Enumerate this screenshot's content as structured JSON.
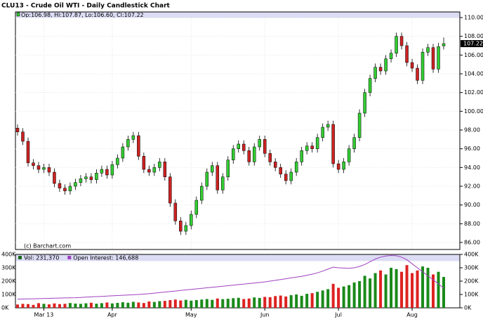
{
  "chart_data": {
    "type": "candlestick",
    "title": "CLU13 - Crude Oil WTI - Daily Candlestick Chart",
    "header": "Op:106.98, Hi:107.87, Lo:106.60, Cl:107.22",
    "source": "(c) Barchart.com",
    "up_color": "#33cc33",
    "down_color": "#cc2222",
    "open": [
      98.2,
      97.8,
      96.8,
      94.5,
      94.2,
      93.8,
      94.0,
      93.5,
      92.3,
      91.8,
      91.5,
      92.0,
      92.4,
      92.8,
      93.0,
      92.7,
      93.4,
      93.8,
      93.2,
      94.3,
      95.0,
      96.2,
      97.0,
      97.4,
      95.2,
      93.8,
      93.5,
      94.0,
      94.6,
      93.0,
      90.2,
      88.3,
      87.2,
      87.8,
      89.0,
      90.5,
      92.0,
      93.5,
      94.2,
      91.6,
      93.0,
      94.8,
      96.0,
      96.5,
      95.8,
      94.6,
      96.2,
      97.0,
      95.5,
      94.6,
      94.0,
      93.3,
      92.6,
      93.5,
      94.6,
      95.8,
      96.3,
      96.0,
      97.2,
      98.3,
      98.6,
      94.4,
      93.8,
      94.6,
      96.0,
      97.2,
      99.8,
      102.0,
      103.5,
      104.7,
      104.3,
      105.6,
      106.2,
      108.0,
      107.0,
      105.2,
      104.6,
      103.3,
      106.3,
      106.8,
      104.5,
      106.98
    ],
    "high": [
      98.6,
      98.2,
      97.2,
      94.9,
      94.6,
      94.4,
      94.4,
      93.9,
      92.7,
      92.2,
      92.4,
      92.8,
      93.2,
      93.4,
      93.4,
      93.8,
      94.2,
      94.2,
      94.7,
      95.4,
      96.6,
      97.4,
      97.8,
      97.8,
      95.6,
      94.2,
      94.4,
      95.0,
      95.0,
      93.4,
      90.6,
      88.7,
      88.2,
      89.4,
      90.9,
      92.4,
      93.9,
      94.6,
      94.6,
      93.4,
      95.2,
      96.4,
      96.9,
      96.9,
      96.2,
      96.6,
      97.4,
      97.4,
      95.9,
      95.0,
      94.4,
      93.7,
      93.9,
      95.0,
      96.2,
      96.7,
      96.7,
      97.6,
      98.7,
      99.0,
      99.0,
      94.8,
      95.0,
      96.4,
      97.6,
      100.2,
      102.4,
      103.9,
      105.1,
      105.1,
      106.0,
      106.6,
      108.4,
      108.4,
      107.4,
      105.6,
      105.0,
      106.7,
      107.2,
      107.2,
      107.3,
      107.87
    ],
    "low": [
      97.4,
      96.4,
      94.1,
      93.8,
      93.4,
      93.4,
      93.1,
      91.9,
      91.4,
      91.1,
      91.1,
      91.6,
      92.0,
      92.4,
      92.3,
      92.3,
      93.0,
      92.8,
      92.8,
      93.9,
      94.6,
      95.8,
      96.6,
      94.8,
      93.4,
      93.1,
      93.1,
      93.6,
      92.6,
      89.8,
      87.9,
      86.8,
      86.8,
      87.4,
      88.6,
      90.1,
      91.6,
      93.1,
      91.2,
      91.2,
      92.6,
      94.4,
      95.6,
      95.4,
      94.2,
      94.2,
      95.8,
      95.1,
      94.2,
      93.6,
      92.9,
      92.2,
      92.2,
      93.1,
      94.2,
      95.4,
      95.6,
      95.6,
      96.8,
      97.9,
      94.0,
      93.4,
      93.4,
      94.2,
      95.6,
      96.8,
      99.4,
      101.6,
      103.1,
      103.9,
      103.9,
      105.2,
      105.8,
      106.6,
      104.8,
      104.2,
      102.9,
      102.9,
      105.9,
      104.1,
      104.1,
      106.6
    ],
    "close": [
      97.8,
      96.8,
      94.5,
      94.2,
      93.8,
      94.0,
      93.5,
      92.3,
      91.8,
      91.5,
      92.0,
      92.4,
      92.8,
      93.0,
      92.7,
      93.4,
      93.8,
      93.2,
      94.3,
      95.0,
      96.2,
      97.0,
      97.4,
      95.2,
      93.8,
      93.5,
      94.0,
      94.6,
      93.0,
      90.2,
      88.3,
      87.2,
      87.8,
      89.0,
      90.5,
      92.0,
      93.5,
      94.2,
      91.6,
      93.0,
      94.8,
      96.0,
      96.5,
      95.8,
      94.6,
      96.2,
      97.0,
      95.5,
      94.6,
      94.0,
      93.3,
      92.6,
      93.5,
      94.6,
      95.8,
      96.3,
      96.0,
      97.2,
      98.3,
      98.6,
      94.4,
      93.8,
      94.6,
      96.0,
      97.2,
      99.8,
      102.0,
      103.5,
      104.7,
      104.3,
      105.6,
      106.2,
      108.0,
      107.0,
      105.2,
      104.6,
      103.3,
      106.3,
      106.8,
      104.5,
      106.9,
      107.22
    ],
    "last_label": "107.22",
    "ylim": [
      86,
      110
    ],
    "yticks": [
      {
        "value": 86,
        "label": "86.00"
      },
      {
        "value": 88,
        "label": "88.00"
      },
      {
        "value": 90,
        "label": "90.00"
      },
      {
        "value": 92,
        "label": "92.00"
      },
      {
        "value": 94,
        "label": "94.00"
      },
      {
        "value": 96,
        "label": "96.00"
      },
      {
        "value": 98,
        "label": "98.00"
      },
      {
        "value": 100,
        "label": "100.00"
      },
      {
        "value": 102,
        "label": "102.00"
      },
      {
        "value": 104,
        "label": "104.00"
      },
      {
        "value": 106,
        "label": "106.00"
      },
      {
        "value": 108,
        "label": "108.00"
      },
      {
        "value": 110,
        "label": "110.00"
      }
    ],
    "xticks": [
      {
        "value": 5,
        "label": "Mar 13"
      },
      {
        "value": 18,
        "label": "Apr"
      },
      {
        "value": 33,
        "label": "May"
      },
      {
        "value": 47,
        "label": "Jun"
      },
      {
        "value": 61,
        "label": "Jul"
      },
      {
        "value": 75,
        "label": "Aug"
      }
    ],
    "grid": true,
    "volume": {
      "ylim": [
        0,
        400000
      ],
      "yticks": [
        {
          "value": 0,
          "label": "0K"
        },
        {
          "value": 100000,
          "label": "100K"
        },
        {
          "value": 200000,
          "label": "200K"
        },
        {
          "value": 300000,
          "label": "300K"
        },
        {
          "value": 400000,
          "label": "400K"
        }
      ],
      "series": [
        {
          "name": "Vol: 231,370",
          "color": "#1a6b1a",
          "values": [
            25000,
            30000,
            28000,
            22000,
            35000,
            30000,
            26000,
            33000,
            28000,
            30000,
            36000,
            32000,
            30000,
            34000,
            38000,
            31000,
            35000,
            40000,
            33000,
            37000,
            42000,
            38000,
            45000,
            40000,
            36000,
            48000,
            44000,
            50000,
            52000,
            58000,
            62000,
            55000,
            60000,
            54000,
            58000,
            62000,
            66000,
            60000,
            70000,
            65000,
            68000,
            72000,
            75000,
            66000,
            70000,
            78000,
            74000,
            82000,
            80000,
            88000,
            92000,
            85000,
            95000,
            100000,
            90000,
            105000,
            110000,
            120000,
            130000,
            140000,
            180000,
            150000,
            160000,
            170000,
            190000,
            200000,
            240000,
            220000,
            260000,
            280000,
            250000,
            300000,
            290000,
            270000,
            320000,
            260000,
            280000,
            310000,
            300000,
            250000,
            270000,
            231370
          ]
        },
        {
          "name": "Open Interest: 146,688",
          "color": "#a040c0",
          "values": [
            65000,
            66000,
            67000,
            68000,
            69000,
            70000,
            71000,
            72000,
            73000,
            74000,
            75000,
            76000,
            78000,
            80000,
            82000,
            84000,
            86000,
            88000,
            90000,
            92000,
            94000,
            96000,
            98000,
            100000,
            103000,
            106000,
            110000,
            114000,
            118000,
            122000,
            126000,
            130000,
            134000,
            138000,
            142000,
            146000,
            150000,
            154000,
            158000,
            162000,
            166000,
            170000,
            174000,
            178000,
            182000,
            186000,
            190000,
            194000,
            200000,
            206000,
            212000,
            218000,
            224000,
            230000,
            236000,
            244000,
            252000,
            262000,
            275000,
            290000,
            305000,
            300000,
            298000,
            296000,
            300000,
            310000,
            325000,
            345000,
            365000,
            380000,
            388000,
            392000,
            390000,
            380000,
            360000,
            330000,
            300000,
            270000,
            240000,
            210000,
            180000,
            146688
          ]
        }
      ]
    }
  }
}
